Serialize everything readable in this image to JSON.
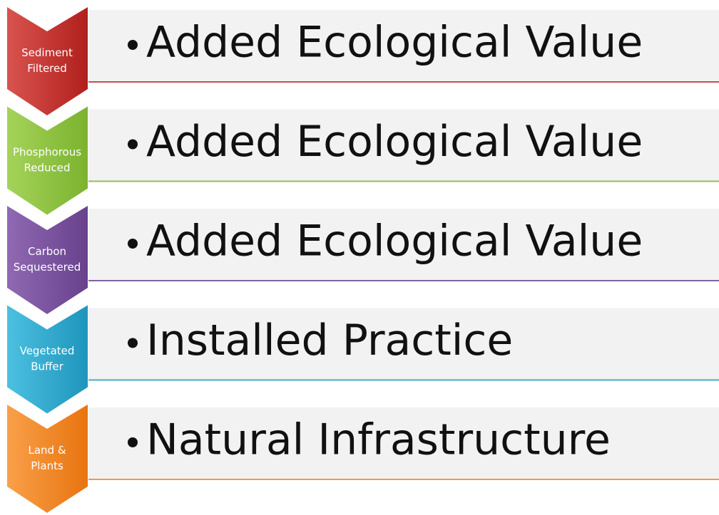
{
  "items": [
    {
      "label": [
        "Sediment",
        "Filtered"
      ],
      "text": "Added Ecological Value"
    },
    {
      "label": [
        "Phosphorous",
        "Reduced"
      ],
      "text": "Added Ecological Value"
    },
    {
      "label": [
        "Carbon",
        "Sequestered"
      ],
      "text": "Added Ecological Value"
    },
    {
      "label": [
        "Vegetated",
        "Buffer"
      ],
      "text": "Installed Practice"
    },
    {
      "label": [
        "Land &",
        "Plants"
      ],
      "text": "Natural Infrastructure"
    }
  ]
}
